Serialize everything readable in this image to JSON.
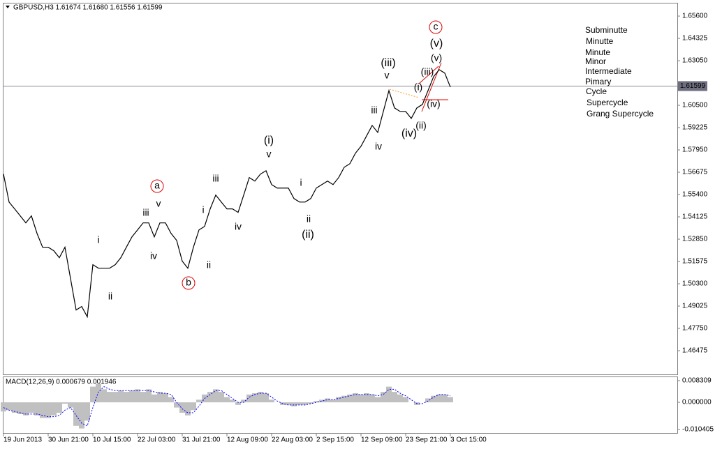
{
  "chart_data": [
    {
      "type": "line",
      "title": "GBPUSD,H3  1.61674 1.61680 1.61556 1.61599",
      "categories": [
        "19 Jun 2013",
        null,
        null,
        null,
        null,
        null,
        null,
        null,
        "30 Jun 21:00",
        null,
        null,
        null,
        null,
        null,
        null,
        null,
        "10 Jul 15:00",
        null,
        null,
        null,
        null,
        null,
        null,
        null,
        "22 Jul 03:00",
        null,
        null,
        null,
        null,
        null,
        null,
        null,
        "31 Jul 21:00",
        null,
        null,
        null,
        null,
        null,
        null,
        null,
        "12 Aug 09:00",
        null,
        null,
        null,
        null,
        null,
        null,
        null,
        "22 Aug 03:00",
        null,
        null,
        null,
        null,
        null,
        null,
        null,
        "2 Sep 15:00",
        null,
        null,
        null,
        null,
        null,
        null,
        null,
        "12 Sep 09:00",
        null,
        null,
        null,
        null,
        null,
        null,
        null,
        "23 Sep 21:00",
        null,
        null,
        null,
        null,
        null,
        null,
        null,
        "3 Oct 15:00"
      ],
      "values": [
        1.5657,
        1.5497,
        1.5458,
        1.5418,
        1.5378,
        1.5418,
        1.5318,
        1.5239,
        1.5239,
        1.5219,
        1.5179,
        1.5239,
        1.506,
        1.488,
        1.49,
        1.4841,
        1.5139,
        1.5119,
        1.5119,
        1.5119,
        1.5139,
        1.5179,
        1.5239,
        1.5298,
        1.5338,
        1.5378,
        1.5378,
        1.5298,
        1.5378,
        1.5378,
        1.5318,
        1.5278,
        1.5159,
        1.5119,
        1.5239,
        1.5338,
        1.5358,
        1.5458,
        1.5537,
        1.5497,
        1.5458,
        1.5458,
        1.5438,
        1.5537,
        1.5637,
        1.5617,
        1.5657,
        1.5676,
        1.5597,
        1.5577,
        1.5577,
        1.5577,
        1.5517,
        1.5497,
        1.5497,
        1.5517,
        1.5577,
        1.5597,
        1.5617,
        1.5597,
        1.5637,
        1.5696,
        1.5716,
        1.5776,
        1.5816,
        1.5875,
        1.5935,
        1.5895,
        1.6015,
        1.6134,
        1.6035,
        1.6015,
        1.6015,
        1.5975,
        1.6035,
        1.6055,
        1.6134,
        1.6214,
        1.6254,
        1.6234,
        1.6154
      ],
      "color": "#000000",
      "current_price": 1.61599,
      "ylim": [
        1.4512,
        1.6632
      ],
      "yticks": [
        {
          "value": 1.656,
          "label": "1.65600"
        },
        1.64325,
        {
          "value": 1.6305,
          "label": "1.63050"
        },
        {
          "value": 1.605,
          "label": "1.60500"
        },
        1.59225,
        {
          "value": 1.5795,
          "label": "1.57950"
        },
        1.56675,
        {
          "value": 1.554,
          "label": "1.55400"
        },
        1.54125,
        {
          "value": 1.5285,
          "label": "1.52850"
        },
        1.51575,
        {
          "value": 1.503,
          "label": "1.50300"
        },
        1.49025,
        {
          "value": 1.4775,
          "label": "1.47750"
        },
        1.46475
      ],
      "annotations": [
        {
          "text": "a",
          "color": "#e00000",
          "shape": "circle"
        },
        {
          "text": "b",
          "color": "#e00000",
          "shape": "circle"
        },
        {
          "text": "c",
          "color": "#e00000",
          "shape": "circle"
        },
        {
          "text": "i",
          "color": "#ff9a2e"
        },
        {
          "text": "ii",
          "color": "#ff9a2e"
        },
        {
          "text": "iii",
          "color": "#ff9a2e"
        },
        {
          "text": "iv",
          "color": "#ff9a2e"
        },
        {
          "text": "v",
          "color": "#ff9a2e"
        },
        {
          "text": "i",
          "color": "#ff9a2e"
        },
        {
          "text": "ii",
          "color": "#ff9a2e"
        },
        {
          "text": "iii",
          "color": "#ff9a2e"
        },
        {
          "text": "iv",
          "color": "#ff9a2e"
        },
        {
          "text": "v",
          "color": "#ff9a2e"
        },
        {
          "text": "i",
          "color": "#ff9a2e"
        },
        {
          "text": "ii",
          "color": "#ff9a2e"
        },
        {
          "text": "iii",
          "color": "#ff9a2e"
        },
        {
          "text": "iv",
          "color": "#ff9a2e"
        },
        {
          "text": "v",
          "color": "#ff9a2e"
        },
        {
          "text": "(i)",
          "color": "#ff9a2e"
        },
        {
          "text": "(ii)",
          "color": "#ff9a2e"
        },
        {
          "text": "(iii)",
          "color": "#ff9a2e"
        },
        {
          "text": "(iv)",
          "color": "#ff9a2e"
        },
        {
          "text": "(v)",
          "color": "#ff9a2e"
        },
        {
          "text": "(i)",
          "color": "#1c1c8c"
        },
        {
          "text": "(ii)",
          "color": "#1c1c8c"
        },
        {
          "text": "(iii)",
          "color": "#1c1c8c"
        },
        {
          "text": "(iv)",
          "color": "#1c1c8c"
        },
        {
          "text": "(v)",
          "color": "#1c1c8c"
        }
      ],
      "legend": [
        {
          "text": "Subminutte",
          "color": "#ff9a2e"
        },
        {
          "text": "Minutte",
          "color": "#1c1c8c"
        },
        {
          "text": "Minute",
          "color": "#e00000"
        },
        {
          "text": "Minor",
          "color": "#1f7a1f"
        },
        {
          "text": "Intermediate",
          "color": "#a020a0"
        },
        {
          "text": "Pimary",
          "color": "#8b1a1a"
        },
        {
          "text": "Cycle",
          "color": "#178a8a"
        },
        {
          "text": "Supercycle",
          "color": "#22b8d8"
        },
        {
          "text": "Grang Supercycle",
          "color": "#000000"
        }
      ]
    },
    {
      "type": "macd",
      "title": "MACD(12,26,9) 0.000679 0.001946",
      "series": [
        {
          "color": "#c0c0c0",
          "values": [
            -0.0035,
            -0.003,
            -0.004,
            -0.0045,
            -0.005,
            -0.004,
            -0.005,
            -0.006,
            -0.006,
            -0.005,
            -0.004,
            -0.0005,
            -0.002,
            -0.009,
            -0.01,
            -0.007,
            0.006,
            0.007,
            0.005,
            0.004,
            0.004,
            0.0045,
            0.004,
            0.0045,
            0.005,
            0.004,
            0.005,
            0.003,
            0.004,
            0.0035,
            0.002,
            -0.002,
            -0.004,
            -0.005,
            -0.003,
            0.001,
            0.003,
            0.004,
            0.005,
            0.004,
            0.002,
            0.001,
            -0.001,
            0.001,
            0.003,
            0.0035,
            0.004,
            0.0035,
            0.001,
            0,
            -0.001,
            -0.001,
            -0.0015,
            -0.001,
            -0.001,
            -0.0005,
            0.0005,
            0.001,
            0.0015,
            0.001,
            0.002,
            0.0025,
            0.003,
            0.0035,
            0.003,
            0.0035,
            0.003,
            0.002,
            0.004,
            0.006,
            0.004,
            0.003,
            0.002,
            0,
            -0.001,
            0,
            0.0015,
            0.0025,
            0.003,
            0.003,
            0.002
          ]
        },
        {
          "color": "#0000ff",
          "values": [
            -0.002,
            -0.003,
            -0.0035,
            -0.004,
            -0.0045,
            -0.0045,
            -0.0045,
            -0.005,
            -0.0055,
            -0.0055,
            -0.005,
            -0.003,
            -0.002,
            -0.005,
            -0.008,
            -0.009,
            -0.002,
            0.004,
            0.006,
            0.005,
            0.0045,
            0.0045,
            0.0045,
            0.0045,
            0.0045,
            0.0045,
            0.0045,
            0.004,
            0.0035,
            0.0035,
            0.003,
            0,
            -0.0025,
            -0.004,
            -0.004,
            -0.0015,
            0.0015,
            0.003,
            0.0045,
            0.0045,
            0.003,
            0.0015,
            0,
            0,
            0.002,
            0.003,
            0.0035,
            0.0035,
            0.002,
            0.0005,
            -0.0005,
            -0.001,
            -0.001,
            -0.001,
            -0.001,
            -0.0005,
            0,
            0.0005,
            0.001,
            0.001,
            0.0015,
            0.002,
            0.0025,
            0.003,
            0.003,
            0.003,
            0.003,
            0.0025,
            0.003,
            0.005,
            0.005,
            0.0035,
            0.0025,
            0.001,
            -0.0005,
            -0.0005,
            0.0005,
            0.002,
            0.003,
            0.003,
            0.0025
          ]
        }
      ],
      "ylim": [
        -0.011723,
        0.009627
      ],
      "yticks": [
        0.008309,
        {
          "value": 0,
          "label": "0.000000"
        },
        -0.010405
      ]
    }
  ]
}
